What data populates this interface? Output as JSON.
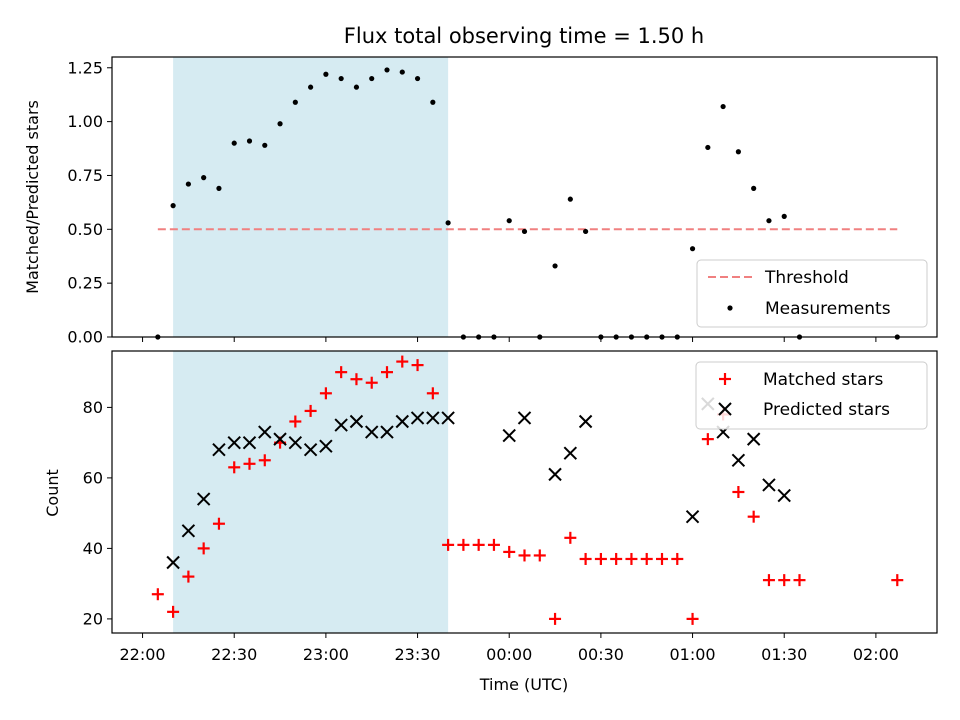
{
  "chart_data": [
    {
      "type": "scatter",
      "title": "Flux total observing time = 1.50 h",
      "xlabel": "",
      "ylabel": "Matched/Predicted stars",
      "xlim": [
        "21:50",
        "02:20"
      ],
      "ylim": [
        0,
        1.3
      ],
      "yticks": [
        "0.00",
        "0.25",
        "0.50",
        "0.75",
        "1.00",
        "1.25"
      ],
      "highlight_span": {
        "start": "22:10",
        "end": "23:40",
        "color": "#add8e6"
      },
      "threshold": {
        "name": "Threshold",
        "value": 0.5,
        "x_start": "22:05",
        "x_end": "02:07",
        "color": "#f08080"
      },
      "series": [
        {
          "name": "Measurements",
          "color": "#000000",
          "marker": "dot",
          "points": [
            [
              "22:05",
              0.0
            ],
            [
              "22:10",
              0.61
            ],
            [
              "22:15",
              0.71
            ],
            [
              "22:20",
              0.74
            ],
            [
              "22:25",
              0.69
            ],
            [
              "22:30",
              0.9
            ],
            [
              "22:35",
              0.91
            ],
            [
              "22:40",
              0.89
            ],
            [
              "22:45",
              0.99
            ],
            [
              "22:50",
              1.09
            ],
            [
              "22:55",
              1.16
            ],
            [
              "23:00",
              1.22
            ],
            [
              "23:05",
              1.2
            ],
            [
              "23:10",
              1.16
            ],
            [
              "23:15",
              1.2
            ],
            [
              "23:20",
              1.24
            ],
            [
              "23:25",
              1.23
            ],
            [
              "23:30",
              1.2
            ],
            [
              "23:35",
              1.09
            ],
            [
              "23:40",
              0.53
            ],
            [
              "23:45",
              0.0
            ],
            [
              "23:50",
              0.0
            ],
            [
              "23:55",
              0.0
            ],
            [
              "00:00",
              0.54
            ],
            [
              "00:05",
              0.49
            ],
            [
              "00:10",
              0.0
            ],
            [
              "00:15",
              0.33
            ],
            [
              "00:20",
              0.64
            ],
            [
              "00:25",
              0.49
            ],
            [
              "00:30",
              0.0
            ],
            [
              "00:35",
              0.0
            ],
            [
              "00:40",
              0.0
            ],
            [
              "00:45",
              0.0
            ],
            [
              "00:50",
              0.0
            ],
            [
              "00:55",
              0.0
            ],
            [
              "01:00",
              0.41
            ],
            [
              "01:05",
              0.88
            ],
            [
              "01:10",
              1.07
            ],
            [
              "01:15",
              0.86
            ],
            [
              "01:20",
              0.69
            ],
            [
              "01:25",
              0.54
            ],
            [
              "01:30",
              0.56
            ],
            [
              "01:35",
              0.0
            ],
            [
              "02:07",
              0.0
            ]
          ]
        }
      ],
      "legend": {
        "position": "lower-right",
        "entries": [
          "Threshold",
          "Measurements"
        ]
      },
      "grid": false
    },
    {
      "type": "scatter",
      "title": "",
      "xlabel": "Time (UTC)",
      "ylabel": "Count",
      "xlim": [
        "21:50",
        "02:20"
      ],
      "ylim": [
        16,
        96
      ],
      "yticks": [
        "20",
        "40",
        "60",
        "80"
      ],
      "xticks": [
        "22:00",
        "22:30",
        "23:00",
        "23:30",
        "00:00",
        "00:30",
        "01:00",
        "01:30",
        "02:00"
      ],
      "highlight_span": {
        "start": "22:10",
        "end": "23:40",
        "color": "#add8e6"
      },
      "series": [
        {
          "name": "Matched stars",
          "color": "#ff0000",
          "marker": "plus",
          "points": [
            [
              "22:05",
              27
            ],
            [
              "22:10",
              22
            ],
            [
              "22:15",
              32
            ],
            [
              "22:20",
              40
            ],
            [
              "22:25",
              47
            ],
            [
              "22:30",
              63
            ],
            [
              "22:35",
              64
            ],
            [
              "22:40",
              65
            ],
            [
              "22:45",
              70
            ],
            [
              "22:50",
              76
            ],
            [
              "22:55",
              79
            ],
            [
              "23:00",
              84
            ],
            [
              "23:05",
              90
            ],
            [
              "23:10",
              88
            ],
            [
              "23:15",
              87
            ],
            [
              "23:20",
              90
            ],
            [
              "23:25",
              93
            ],
            [
              "23:30",
              92
            ],
            [
              "23:35",
              84
            ],
            [
              "23:40",
              41
            ],
            [
              "23:45",
              41
            ],
            [
              "23:50",
              41
            ],
            [
              "23:55",
              41
            ],
            [
              "00:00",
              39
            ],
            [
              "00:05",
              38
            ],
            [
              "00:10",
              38
            ],
            [
              "00:15",
              20
            ],
            [
              "00:20",
              43
            ],
            [
              "00:25",
              37
            ],
            [
              "00:30",
              37
            ],
            [
              "00:35",
              37
            ],
            [
              "00:40",
              37
            ],
            [
              "00:45",
              37
            ],
            [
              "00:50",
              37
            ],
            [
              "00:55",
              37
            ],
            [
              "01:00",
              20
            ],
            [
              "01:05",
              71
            ],
            [
              "01:10",
              78
            ],
            [
              "01:15",
              56
            ],
            [
              "01:20",
              49
            ],
            [
              "01:25",
              31
            ],
            [
              "01:30",
              31
            ],
            [
              "01:35",
              31
            ],
            [
              "02:07",
              31
            ]
          ]
        },
        {
          "name": "Predicted stars",
          "color": "#000000",
          "marker": "x",
          "points": [
            [
              "22:10",
              36
            ],
            [
              "22:15",
              45
            ],
            [
              "22:20",
              54
            ],
            [
              "22:25",
              68
            ],
            [
              "22:30",
              70
            ],
            [
              "22:35",
              70
            ],
            [
              "22:40",
              73
            ],
            [
              "22:45",
              71
            ],
            [
              "22:50",
              70
            ],
            [
              "22:55",
              68
            ],
            [
              "23:00",
              69
            ],
            [
              "23:05",
              75
            ],
            [
              "23:10",
              76
            ],
            [
              "23:15",
              73
            ],
            [
              "23:20",
              73
            ],
            [
              "23:25",
              76
            ],
            [
              "23:30",
              77
            ],
            [
              "23:35",
              77
            ],
            [
              "23:40",
              77
            ],
            [
              "00:00",
              72
            ],
            [
              "00:05",
              77
            ],
            [
              "00:15",
              61
            ],
            [
              "00:20",
              67
            ],
            [
              "00:25",
              76
            ],
            [
              "01:00",
              49
            ],
            [
              "01:05",
              81
            ],
            [
              "01:10",
              73
            ],
            [
              "01:15",
              65
            ],
            [
              "01:20",
              71
            ],
            [
              "01:25",
              58
            ],
            [
              "01:30",
              55
            ]
          ]
        }
      ],
      "legend": {
        "position": "upper-right",
        "entries": [
          "Matched stars",
          "Predicted stars"
        ]
      },
      "grid": false
    }
  ]
}
